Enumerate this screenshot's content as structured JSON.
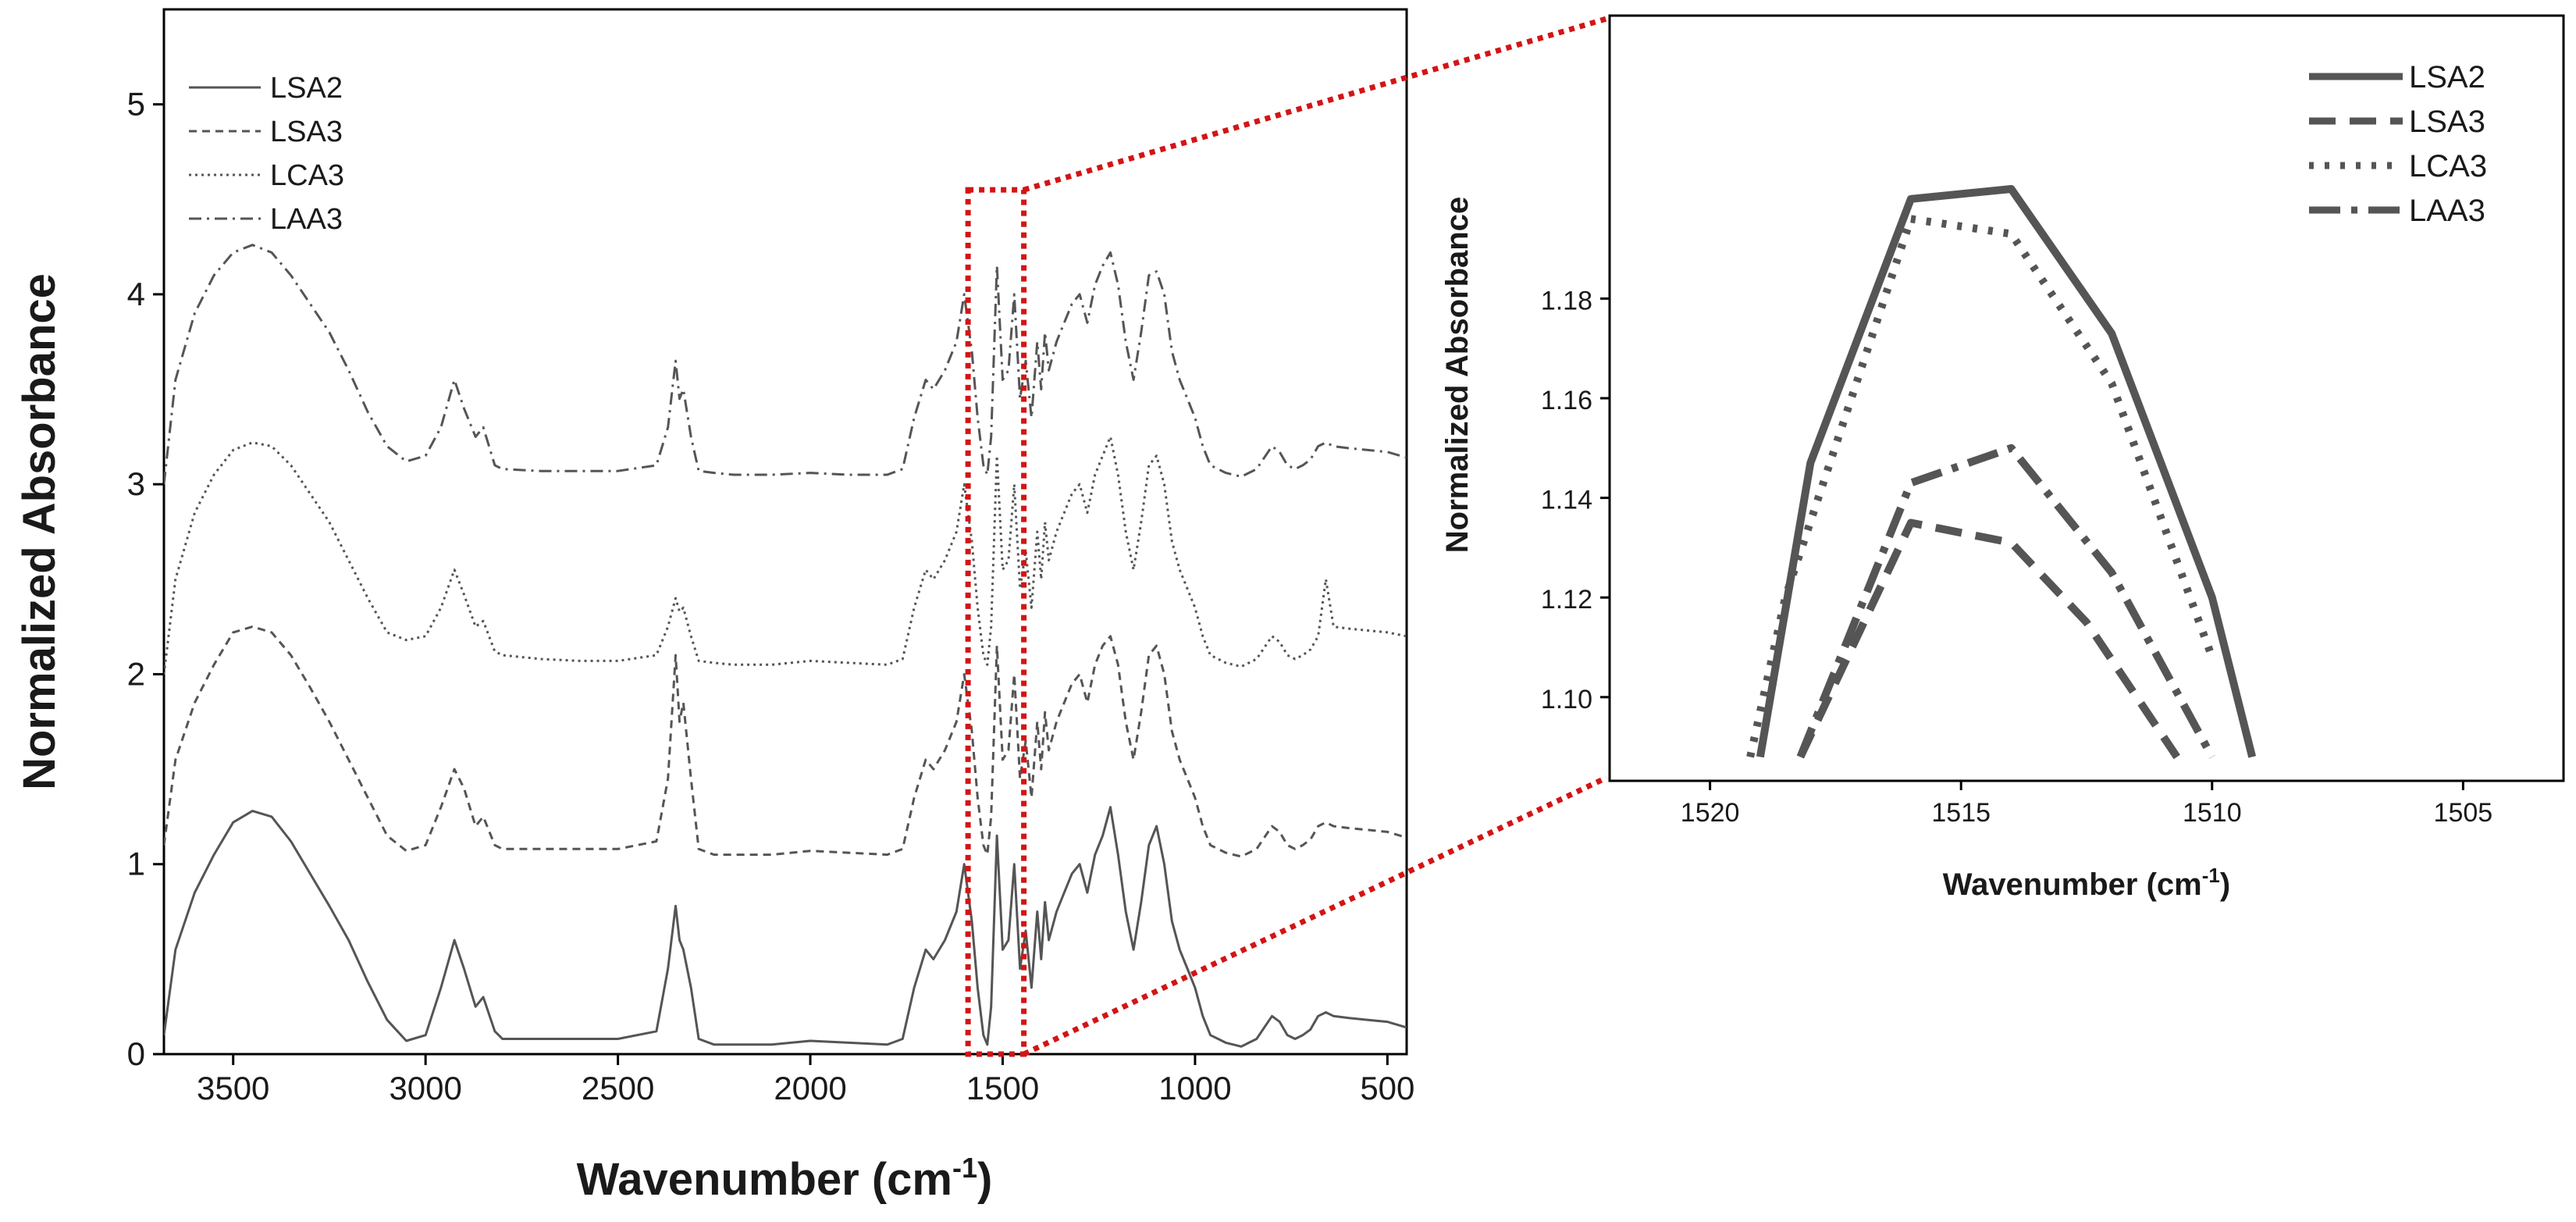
{
  "chart_data": [
    {
      "type": "line",
      "panel": "main",
      "xlabel": "Wavenumber (cm",
      "xlabel_sup": "-1",
      "xlabel_close": ")",
      "ylabel": "Normalized Absorbance",
      "xlim": [
        3680,
        450
      ],
      "ylim": [
        0,
        5.5
      ],
      "xticks": [
        3500,
        3000,
        2500,
        2000,
        1500,
        1000,
        500
      ],
      "yticks": [
        0,
        1,
        2,
        3,
        4,
        5
      ],
      "legend_position": "top-left",
      "zoom_region": {
        "x": [
          1590,
          1445
        ],
        "y": [
          0,
          4.55
        ]
      },
      "series": [
        {
          "name": "LSA2",
          "style": "solid",
          "offset": 0,
          "x": [
            3680,
            3650,
            3600,
            3550,
            3500,
            3450,
            3400,
            3350,
            3300,
            3250,
            3200,
            3150,
            3100,
            3050,
            3000,
            2960,
            2925,
            2900,
            2870,
            2850,
            2820,
            2800,
            2700,
            2600,
            2500,
            2400,
            2370,
            2350,
            2340,
            2330,
            2310,
            2290,
            2250,
            2200,
            2100,
            2000,
            1900,
            1800,
            1760,
            1730,
            1700,
            1680,
            1650,
            1620,
            1600,
            1580,
            1565,
            1550,
            1540,
            1530,
            1515,
            1500,
            1485,
            1470,
            1455,
            1440,
            1425,
            1410,
            1400,
            1390,
            1380,
            1360,
            1340,
            1320,
            1300,
            1280,
            1260,
            1240,
            1220,
            1200,
            1180,
            1160,
            1140,
            1120,
            1100,
            1080,
            1060,
            1040,
            1020,
            1000,
            980,
            960,
            940,
            920,
            900,
            880,
            860,
            840,
            820,
            800,
            780,
            760,
            740,
            720,
            700,
            680,
            660,
            640,
            600,
            550,
            500,
            450
          ],
          "y": [
            0.1,
            0.55,
            0.85,
            1.05,
            1.22,
            1.28,
            1.25,
            1.12,
            0.95,
            0.78,
            0.6,
            0.38,
            0.18,
            0.07,
            0.1,
            0.35,
            0.6,
            0.45,
            0.25,
            0.3,
            0.12,
            0.08,
            0.08,
            0.08,
            0.08,
            0.12,
            0.45,
            0.78,
            0.6,
            0.55,
            0.35,
            0.08,
            0.05,
            0.05,
            0.05,
            0.07,
            0.06,
            0.05,
            0.08,
            0.35,
            0.55,
            0.5,
            0.6,
            0.75,
            1.0,
            0.7,
            0.35,
            0.1,
            0.05,
            0.25,
            1.15,
            0.55,
            0.6,
            1.0,
            0.45,
            0.65,
            0.35,
            0.75,
            0.5,
            0.8,
            0.6,
            0.75,
            0.85,
            0.95,
            1.0,
            0.85,
            1.05,
            1.15,
            1.3,
            1.05,
            0.75,
            0.55,
            0.8,
            1.1,
            1.2,
            1.0,
            0.7,
            0.55,
            0.45,
            0.35,
            0.2,
            0.1,
            0.08,
            0.06,
            0.05,
            0.04,
            0.06,
            0.08,
            0.14,
            0.2,
            0.17,
            0.1,
            0.08,
            0.1,
            0.13,
            0.2,
            0.22,
            0.2,
            0.19,
            0.18,
            0.17,
            0.14
          ]
        },
        {
          "name": "LSA3",
          "style": "dashed",
          "offset": 1,
          "x": [
            3680,
            3650,
            3600,
            3550,
            3500,
            3450,
            3400,
            3350,
            3300,
            3250,
            3200,
            3150,
            3100,
            3050,
            3000,
            2960,
            2925,
            2900,
            2870,
            2850,
            2820,
            2800,
            2700,
            2600,
            2500,
            2400,
            2370,
            2350,
            2340,
            2330,
            2310,
            2290,
            2250,
            2200,
            2100,
            2000,
            1900,
            1800,
            1760,
            1730,
            1700,
            1680,
            1650,
            1620,
            1600,
            1580,
            1565,
            1550,
            1540,
            1530,
            1515,
            1500,
            1485,
            1470,
            1455,
            1440,
            1425,
            1410,
            1400,
            1390,
            1380,
            1360,
            1340,
            1320,
            1300,
            1280,
            1260,
            1240,
            1220,
            1200,
            1180,
            1160,
            1140,
            1120,
            1100,
            1080,
            1060,
            1040,
            1020,
            1000,
            980,
            960,
            940,
            920,
            900,
            880,
            860,
            840,
            820,
            800,
            780,
            760,
            740,
            720,
            700,
            680,
            660,
            640,
            600,
            550,
            500,
            450
          ],
          "y": [
            0.1,
            0.55,
            0.85,
            1.05,
            1.22,
            1.25,
            1.22,
            1.1,
            0.93,
            0.75,
            0.55,
            0.35,
            0.15,
            0.07,
            0.1,
            0.3,
            0.5,
            0.4,
            0.2,
            0.25,
            0.1,
            0.08,
            0.08,
            0.08,
            0.08,
            0.12,
            0.45,
            1.1,
            0.75,
            0.85,
            0.45,
            0.08,
            0.05,
            0.05,
            0.05,
            0.07,
            0.06,
            0.05,
            0.08,
            0.35,
            0.55,
            0.5,
            0.6,
            0.75,
            1.0,
            0.7,
            0.35,
            0.1,
            0.05,
            0.25,
            1.15,
            0.55,
            0.6,
            1.0,
            0.45,
            0.65,
            0.35,
            0.75,
            0.5,
            0.8,
            0.6,
            0.75,
            0.85,
            0.95,
            1.0,
            0.85,
            1.05,
            1.15,
            1.2,
            1.05,
            0.75,
            0.55,
            0.8,
            1.1,
            1.15,
            1.0,
            0.7,
            0.55,
            0.45,
            0.35,
            0.2,
            0.1,
            0.08,
            0.06,
            0.05,
            0.04,
            0.06,
            0.08,
            0.14,
            0.2,
            0.17,
            0.1,
            0.08,
            0.1,
            0.13,
            0.2,
            0.22,
            0.2,
            0.19,
            0.18,
            0.17,
            0.14
          ]
        },
        {
          "name": "LCA3",
          "style": "dotted",
          "offset": 2,
          "x": [
            3680,
            3650,
            3600,
            3550,
            3500,
            3450,
            3400,
            3350,
            3300,
            3250,
            3200,
            3150,
            3100,
            3050,
            3000,
            2960,
            2925,
            2900,
            2870,
            2850,
            2820,
            2800,
            2700,
            2600,
            2500,
            2400,
            2370,
            2350,
            2340,
            2330,
            2310,
            2290,
            2250,
            2200,
            2100,
            2000,
            1900,
            1800,
            1760,
            1730,
            1700,
            1680,
            1650,
            1620,
            1600,
            1580,
            1565,
            1550,
            1540,
            1530,
            1515,
            1500,
            1485,
            1470,
            1455,
            1440,
            1425,
            1410,
            1400,
            1390,
            1380,
            1360,
            1340,
            1320,
            1300,
            1280,
            1260,
            1240,
            1220,
            1200,
            1180,
            1160,
            1140,
            1120,
            1100,
            1080,
            1060,
            1040,
            1020,
            1000,
            980,
            960,
            940,
            920,
            900,
            880,
            860,
            840,
            820,
            800,
            780,
            760,
            740,
            720,
            700,
            680,
            660,
            640,
            600,
            550,
            500,
            450
          ],
          "y": [
            0.0,
            0.5,
            0.85,
            1.05,
            1.18,
            1.22,
            1.2,
            1.1,
            0.95,
            0.8,
            0.6,
            0.4,
            0.22,
            0.18,
            0.2,
            0.35,
            0.55,
            0.42,
            0.25,
            0.28,
            0.12,
            0.1,
            0.08,
            0.07,
            0.07,
            0.1,
            0.25,
            0.4,
            0.33,
            0.35,
            0.2,
            0.07,
            0.06,
            0.05,
            0.05,
            0.07,
            0.06,
            0.05,
            0.08,
            0.35,
            0.55,
            0.5,
            0.6,
            0.75,
            1.0,
            0.7,
            0.35,
            0.1,
            0.05,
            0.25,
            1.15,
            0.55,
            0.6,
            1.0,
            0.45,
            0.65,
            0.35,
            0.75,
            0.5,
            0.8,
            0.6,
            0.75,
            0.85,
            0.95,
            1.0,
            0.85,
            1.05,
            1.15,
            1.25,
            1.05,
            0.75,
            0.55,
            0.8,
            1.1,
            1.15,
            1.0,
            0.7,
            0.55,
            0.45,
            0.35,
            0.2,
            0.1,
            0.08,
            0.06,
            0.05,
            0.04,
            0.06,
            0.08,
            0.14,
            0.2,
            0.17,
            0.1,
            0.08,
            0.1,
            0.13,
            0.2,
            0.5,
            0.25,
            0.24,
            0.23,
            0.22,
            0.2
          ]
        },
        {
          "name": "LAA3",
          "style": "dashdot",
          "offset": 3,
          "x": [
            3680,
            3650,
            3600,
            3550,
            3500,
            3450,
            3400,
            3350,
            3300,
            3250,
            3200,
            3150,
            3100,
            3050,
            3000,
            2960,
            2925,
            2900,
            2870,
            2850,
            2820,
            2800,
            2700,
            2600,
            2500,
            2400,
            2370,
            2350,
            2340,
            2330,
            2310,
            2290,
            2250,
            2200,
            2100,
            2000,
            1900,
            1800,
            1760,
            1730,
            1700,
            1680,
            1650,
            1620,
            1600,
            1580,
            1565,
            1550,
            1540,
            1530,
            1515,
            1500,
            1485,
            1470,
            1455,
            1440,
            1425,
            1410,
            1400,
            1390,
            1380,
            1360,
            1340,
            1320,
            1300,
            1280,
            1260,
            1240,
            1220,
            1200,
            1180,
            1160,
            1140,
            1120,
            1100,
            1080,
            1060,
            1040,
            1020,
            1000,
            980,
            960,
            940,
            920,
            900,
            880,
            860,
            840,
            820,
            800,
            780,
            760,
            740,
            720,
            700,
            680,
            660,
            640,
            600,
            550,
            500,
            450
          ],
          "y": [
            0.0,
            0.55,
            0.9,
            1.1,
            1.22,
            1.26,
            1.22,
            1.1,
            0.95,
            0.8,
            0.6,
            0.38,
            0.2,
            0.12,
            0.15,
            0.3,
            0.55,
            0.4,
            0.25,
            0.3,
            0.1,
            0.08,
            0.07,
            0.07,
            0.07,
            0.1,
            0.3,
            0.65,
            0.45,
            0.5,
            0.25,
            0.07,
            0.06,
            0.05,
            0.05,
            0.06,
            0.05,
            0.05,
            0.08,
            0.35,
            0.55,
            0.5,
            0.6,
            0.75,
            1.0,
            0.7,
            0.35,
            0.1,
            0.05,
            0.25,
            1.15,
            0.55,
            0.6,
            1.0,
            0.45,
            0.65,
            0.35,
            0.75,
            0.5,
            0.8,
            0.6,
            0.75,
            0.85,
            0.95,
            1.0,
            0.85,
            1.05,
            1.15,
            1.22,
            1.05,
            0.75,
            0.55,
            0.8,
            1.1,
            1.12,
            1.0,
            0.7,
            0.55,
            0.45,
            0.35,
            0.2,
            0.1,
            0.08,
            0.06,
            0.05,
            0.04,
            0.06,
            0.08,
            0.14,
            0.2,
            0.17,
            0.1,
            0.08,
            0.1,
            0.13,
            0.2,
            0.22,
            0.2,
            0.19,
            0.18,
            0.17,
            0.14
          ]
        }
      ]
    },
    {
      "type": "line",
      "panel": "inset",
      "xlabel": "Wavenumber (cm",
      "xlabel_sup": "-1",
      "xlabel_close": ")",
      "ylabel": "Normalized Absorbance",
      "xlim": [
        1522,
        1503
      ],
      "ylim": [
        1.0832,
        1.2368
      ],
      "xticks": [
        1520,
        1515,
        1510,
        1505
      ],
      "yticks": [
        1.1,
        1.12,
        1.14,
        1.16,
        1.18
      ],
      "ytick_labels": [
        "1.10",
        "1.12",
        "1.14",
        "1.16",
        "1.18"
      ],
      "legend_position": "top-right",
      "series": [
        {
          "name": "LSA2",
          "style": "solid",
          "x": [
            1519.0,
            1518.0,
            1516.0,
            1514.0,
            1512.0,
            1510.0,
            1509.2
          ],
          "y": [
            1.088,
            1.147,
            1.2,
            1.202,
            1.173,
            1.12,
            1.088
          ]
        },
        {
          "name": "LSA3",
          "style": "dashed",
          "x": [
            1518.2,
            1516.0,
            1514.0,
            1512.5,
            1510.7
          ],
          "y": [
            1.088,
            1.135,
            1.131,
            1.115,
            1.088
          ]
        },
        {
          "name": "LCA3",
          "style": "dotted",
          "x": [
            1519.2,
            1518.5,
            1516.0,
            1514.0,
            1512.0,
            1510.0
          ],
          "y": [
            1.088,
            1.12,
            1.196,
            1.193,
            1.163,
            1.108
          ]
        },
        {
          "name": "LAA3",
          "style": "dashdot",
          "x": [
            1518.2,
            1516.0,
            1514.0,
            1512.0,
            1510.0
          ],
          "y": [
            1.088,
            1.143,
            1.15,
            1.125,
            1.088
          ]
        }
      ]
    }
  ]
}
